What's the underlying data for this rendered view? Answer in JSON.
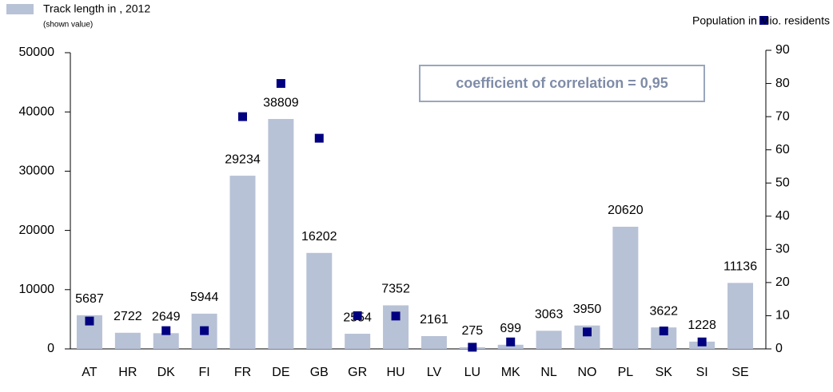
{
  "chart_data": {
    "type": "bar",
    "categories": [
      "AT",
      "HR",
      "DK",
      "FI",
      "FR",
      "DE",
      "GB",
      "GR",
      "HU",
      "LV",
      "LU",
      "MK",
      "NL",
      "NO",
      "PL",
      "SK",
      "SI",
      "SE"
    ],
    "series": [
      {
        "name": "Track length in , 2012",
        "type": "bar",
        "color": "#b8c2d6",
        "values": [
          5687,
          2722,
          2649,
          5944,
          29234,
          38809,
          16202,
          2554,
          7352,
          2161,
          275,
          699,
          3063,
          3950,
          20620,
          3622,
          1228,
          11136
        ]
      },
      {
        "name": "Population in Mio. residents",
        "type": "scatter",
        "axis": "y2",
        "color": "#000080",
        "values": [
          8.4,
          null,
          5.5,
          5.5,
          70,
          80,
          63.5,
          10,
          9.9,
          null,
          0.5,
          2.1,
          null,
          5.1,
          null,
          5.4,
          2.1,
          null
        ]
      }
    ],
    "legend_note": "(shown value)",
    "annotation": "coefficient of correlation = 0,95",
    "ylim": [
      0,
      50000
    ],
    "yticks": [
      0,
      10000,
      20000,
      30000,
      40000,
      50000
    ],
    "y2lim": [
      0,
      90
    ],
    "y2ticks": [
      0,
      10,
      20,
      30,
      40,
      50,
      60,
      70,
      80,
      90
    ]
  }
}
